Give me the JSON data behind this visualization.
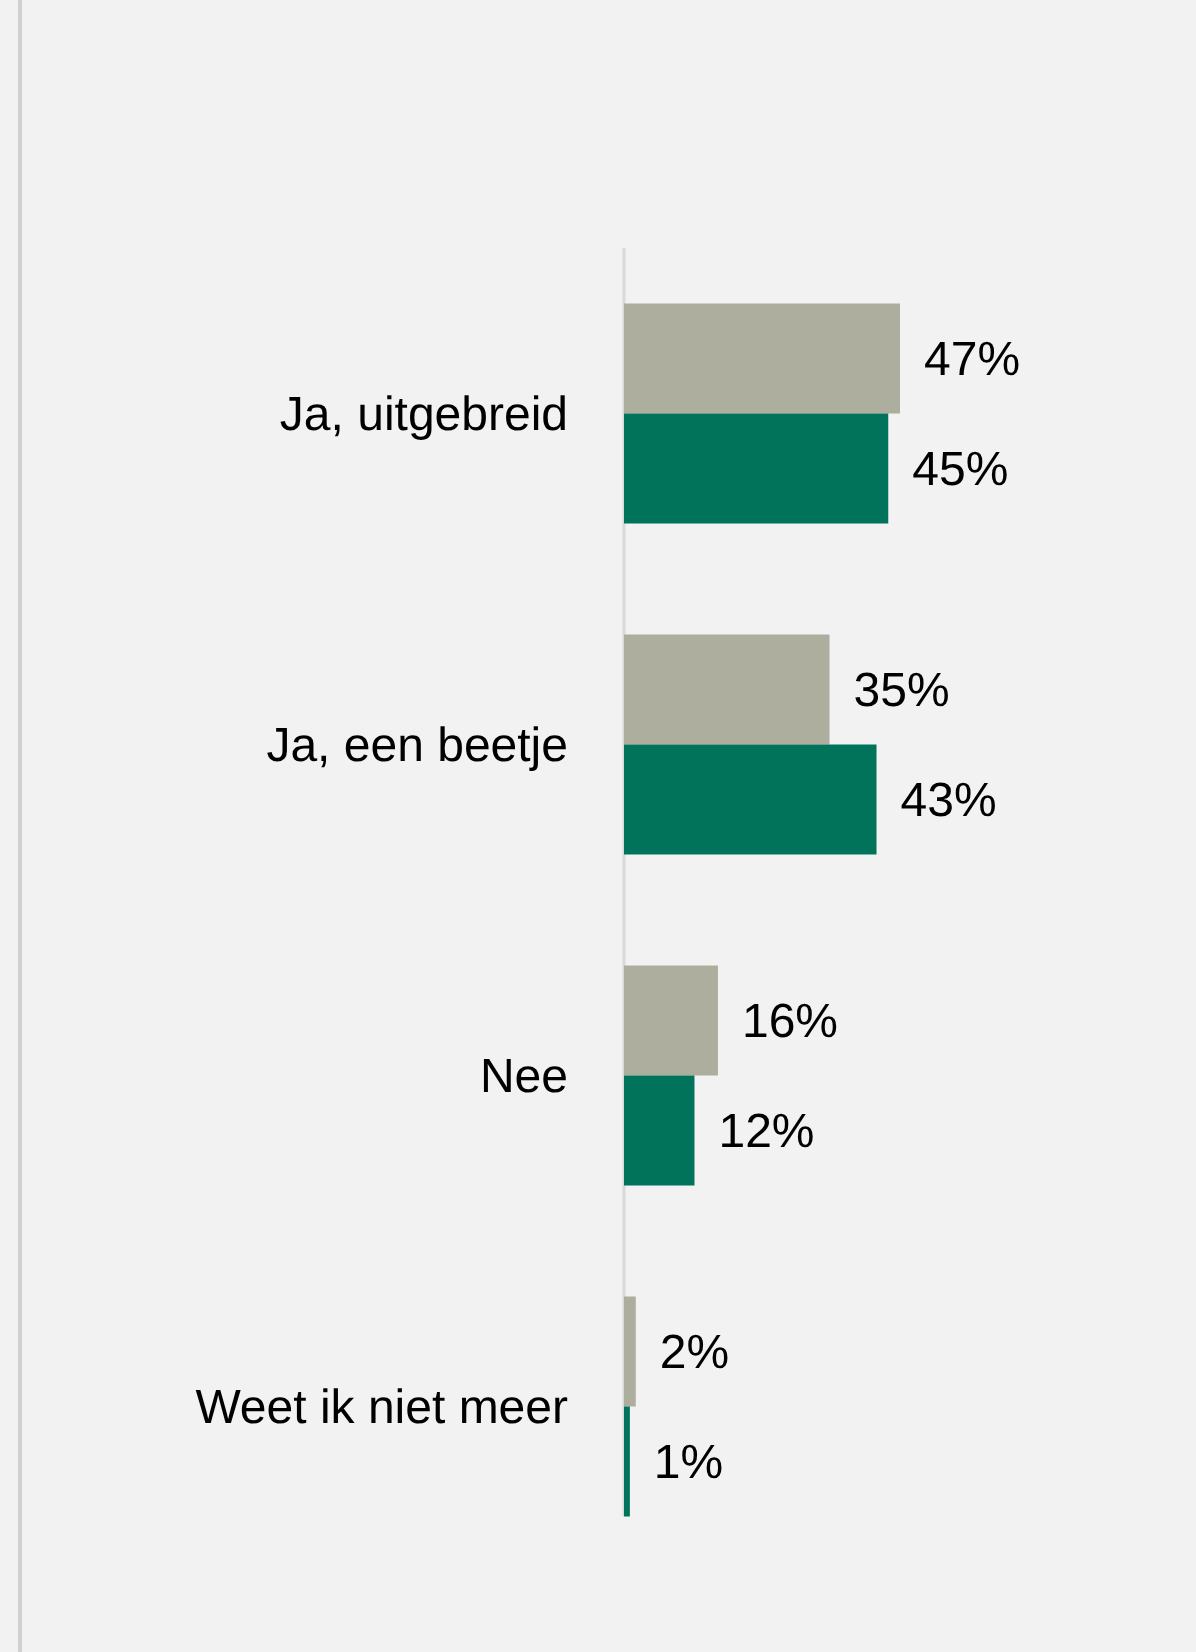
{
  "chart_data": {
    "type": "bar",
    "orientation": "horizontal",
    "categories": [
      "Ja, uitgebreid",
      "Ja, een beetje",
      "Nee",
      "Weet ik niet meer"
    ],
    "series": [
      {
        "color": "#adae9e",
        "values": [
          47,
          35,
          16,
          2
        ],
        "value_labels": [
          "47%",
          "35%",
          "16%",
          "2%"
        ]
      },
      {
        "color": "#00735a",
        "values": [
          45,
          43,
          12,
          1
        ],
        "value_labels": [
          "45%",
          "43%",
          "12%",
          "1%"
        ]
      }
    ]
  }
}
